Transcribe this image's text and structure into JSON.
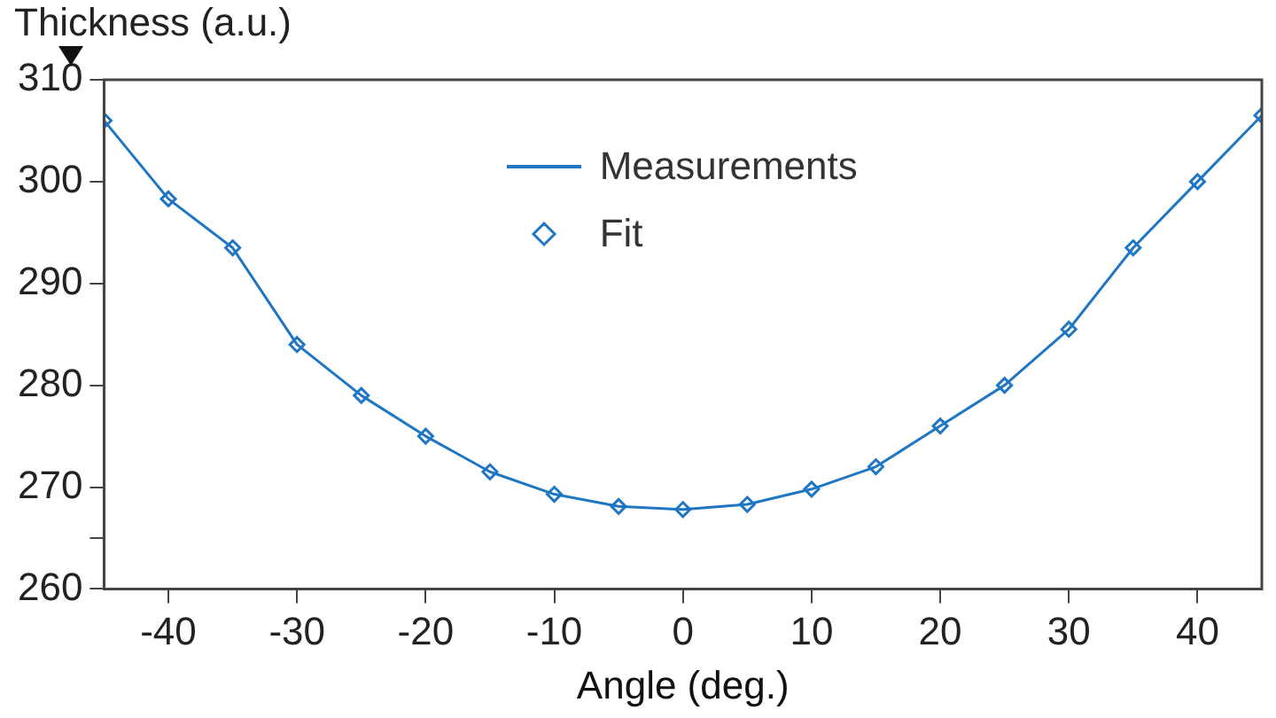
{
  "chart_data": {
    "type": "line",
    "ylabel": "Thickness (a.u.)",
    "xlabel": "Angle (deg.)",
    "x": [
      -45,
      -40,
      -35,
      -30,
      -25,
      -20,
      -15,
      -10,
      -5,
      0,
      5,
      10,
      15,
      20,
      25,
      30,
      35,
      40,
      45
    ],
    "series": [
      {
        "name": "Measurements",
        "color": "#1f77c4",
        "type": "line",
        "marker": "none",
        "values": [
          306,
          298.3,
          293.5,
          284,
          279,
          275,
          271.5,
          269.3,
          268.1,
          267.8,
          268.3,
          269.8,
          272,
          276,
          280,
          285.5,
          293.5,
          300,
          306.5
        ]
      },
      {
        "name": "Fit",
        "color": "#1f77c4",
        "type": "scatter",
        "marker": "diamond",
        "values": [
          306,
          298.3,
          293.5,
          284,
          279,
          275,
          271.5,
          269.3,
          268.1,
          267.8,
          268.3,
          269.8,
          272,
          276,
          280,
          285.5,
          293.5,
          300,
          306.5
        ]
      }
    ],
    "xlim": [
      -45,
      45
    ],
    "xticks": [
      -40,
      -30,
      -20,
      -10,
      0,
      10,
      20,
      30,
      40
    ],
    "ylim": [
      260,
      310
    ],
    "yticks": [
      260,
      {
        "value": 265,
        "label": null
      },
      270,
      280,
      290,
      300,
      310
    ],
    "grid": false,
    "legend": "top"
  }
}
